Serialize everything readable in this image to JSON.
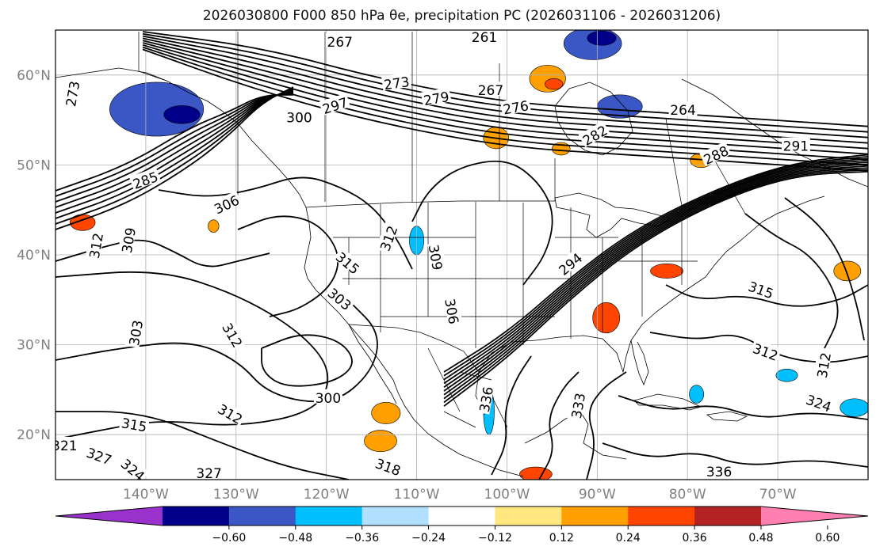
{
  "title": "2026030800 F000 850 hPa θe, precipitation PC (2026031106 - 2026031206)",
  "map": {
    "lon_range": [
      -150,
      -60
    ],
    "lat_range": [
      15,
      65
    ],
    "lon_ticks": [
      "140°W",
      "130°W",
      "120°W",
      "110°W",
      "100°W",
      "90°W",
      "80°W",
      "70°W"
    ],
    "lat_ticks": [
      "60°N",
      "50°N",
      "40°N",
      "30°N",
      "20°N"
    ],
    "grid": true,
    "contour_labels": [
      {
        "text": "267",
        "lon": -118.5,
        "lat": 63.6,
        "rot": 0
      },
      {
        "text": "261",
        "lon": -102.5,
        "lat": 64.1,
        "rot": 0
      },
      {
        "text": "273",
        "lon": -148.0,
        "lat": 57.9,
        "rot": 80
      },
      {
        "text": "273",
        "lon": -112.2,
        "lat": 59.0,
        "rot": 8
      },
      {
        "text": "279",
        "lon": -107.8,
        "lat": 57.3,
        "rot": 10
      },
      {
        "text": "267",
        "lon": -101.8,
        "lat": 58.2,
        "rot": 0
      },
      {
        "text": "276",
        "lon": -99.0,
        "lat": 56.3,
        "rot": 10
      },
      {
        "text": "297",
        "lon": -119.0,
        "lat": 56.5,
        "rot": 18
      },
      {
        "text": "300",
        "lon": -123.0,
        "lat": 55.2,
        "rot": 0
      },
      {
        "text": "264",
        "lon": -80.5,
        "lat": 56.0,
        "rot": 0
      },
      {
        "text": "282",
        "lon": -90.2,
        "lat": 53.2,
        "rot": 30
      },
      {
        "text": "288",
        "lon": -76.8,
        "lat": 51.0,
        "rot": 25
      },
      {
        "text": "291",
        "lon": -68.0,
        "lat": 52.0,
        "rot": 0
      },
      {
        "text": "285",
        "lon": -140.0,
        "lat": 48.2,
        "rot": 20
      },
      {
        "text": "306",
        "lon": -131.0,
        "lat": 45.5,
        "rot": 25
      },
      {
        "text": "309",
        "lon": -141.8,
        "lat": 41.6,
        "rot": 80
      },
      {
        "text": "312",
        "lon": -145.4,
        "lat": 41.0,
        "rot": 80
      },
      {
        "text": "312",
        "lon": -113.0,
        "lat": 41.8,
        "rot": 70
      },
      {
        "text": "315",
        "lon": -117.7,
        "lat": 39.0,
        "rot": -40
      },
      {
        "text": "309",
        "lon": -108.0,
        "lat": 39.7,
        "rot": -80
      },
      {
        "text": "294",
        "lon": -92.9,
        "lat": 38.9,
        "rot": 40
      },
      {
        "text": "303",
        "lon": -118.6,
        "lat": 35.0,
        "rot": -40
      },
      {
        "text": "306",
        "lon": -106.2,
        "lat": 33.7,
        "rot": -80
      },
      {
        "text": "303",
        "lon": -141.0,
        "lat": 31.3,
        "rot": 80
      },
      {
        "text": "312",
        "lon": -130.5,
        "lat": 31.0,
        "rot": -60
      },
      {
        "text": "315",
        "lon": -71.9,
        "lat": 36.0,
        "rot": -20
      },
      {
        "text": "312",
        "lon": -71.4,
        "lat": 29.1,
        "rot": -20
      },
      {
        "text": "312",
        "lon": -64.8,
        "lat": 27.7,
        "rot": 80
      },
      {
        "text": "300",
        "lon": -119.8,
        "lat": 24.0,
        "rot": 0
      },
      {
        "text": "312",
        "lon": -130.7,
        "lat": 22.2,
        "rot": -30
      },
      {
        "text": "336",
        "lon": -102.2,
        "lat": 23.9,
        "rot": 80
      },
      {
        "text": "333",
        "lon": -92.0,
        "lat": 23.2,
        "rot": 80
      },
      {
        "text": "324",
        "lon": -65.5,
        "lat": 23.4,
        "rot": -20
      },
      {
        "text": "315",
        "lon": -141.3,
        "lat": 21.0,
        "rot": -10
      },
      {
        "text": "321",
        "lon": -149.0,
        "lat": 18.7,
        "rot": 0
      },
      {
        "text": "327",
        "lon": -145.2,
        "lat": 17.5,
        "rot": -20
      },
      {
        "text": "324",
        "lon": -141.5,
        "lat": 16.0,
        "rot": -40
      },
      {
        "text": "327",
        "lon": -133.0,
        "lat": 15.6,
        "rot": 0
      },
      {
        "text": "318",
        "lon": -113.2,
        "lat": 16.3,
        "rot": -20
      },
      {
        "text": "336",
        "lon": -76.5,
        "lat": 15.8,
        "rot": 0
      }
    ],
    "precip_blobs": [
      {
        "lon": -138.8,
        "lat": 56.2,
        "rx": 5.2,
        "ry": 3.0,
        "color": "#3b57c6"
      },
      {
        "lon": -136.0,
        "lat": 55.6,
        "rx": 2.0,
        "ry": 1.0,
        "color": "#00008b"
      },
      {
        "lon": -90.5,
        "lat": 63.5,
        "rx": 3.2,
        "ry": 1.8,
        "color": "#3b57c6"
      },
      {
        "lon": -89.5,
        "lat": 64.1,
        "rx": 1.6,
        "ry": 0.8,
        "color": "#00008b"
      },
      {
        "lon": -87.5,
        "lat": 56.5,
        "rx": 2.5,
        "ry": 1.3,
        "color": "#3b57c6"
      },
      {
        "lon": -95.5,
        "lat": 59.6,
        "rx": 2.0,
        "ry": 1.5,
        "color": "#ffa000"
      },
      {
        "lon": -94.8,
        "lat": 59.0,
        "rx": 1.0,
        "ry": 0.6,
        "color": "#ff4500"
      },
      {
        "lon": -101.2,
        "lat": 53.0,
        "rx": 1.4,
        "ry": 1.2,
        "color": "#ffa000"
      },
      {
        "lon": -147.0,
        "lat": 43.6,
        "rx": 1.4,
        "ry": 0.9,
        "color": "#ff4500"
      },
      {
        "lon": -82.3,
        "lat": 38.2,
        "rx": 1.8,
        "ry": 0.8,
        "color": "#ff4500"
      },
      {
        "lon": -89.0,
        "lat": 33.0,
        "rx": 1.5,
        "ry": 1.7,
        "color": "#ff4500"
      },
      {
        "lon": -114.0,
        "lat": 19.3,
        "rx": 1.8,
        "ry": 1.2,
        "color": "#ffa000"
      },
      {
        "lon": -113.4,
        "lat": 22.4,
        "rx": 1.6,
        "ry": 1.2,
        "color": "#ffa000"
      },
      {
        "lon": -96.8,
        "lat": 15.6,
        "rx": 1.8,
        "ry": 0.8,
        "color": "#ff4500"
      },
      {
        "lon": -62.3,
        "lat": 38.2,
        "rx": 1.5,
        "ry": 1.1,
        "color": "#ffa000"
      },
      {
        "lon": -78.5,
        "lat": 50.5,
        "rx": 1.2,
        "ry": 0.8,
        "color": "#ffa000"
      },
      {
        "lon": -102.0,
        "lat": 22.6,
        "rx": 0.6,
        "ry": 2.6,
        "color": "#00bfff"
      },
      {
        "lon": -110.0,
        "lat": 41.6,
        "rx": 0.8,
        "ry": 1.6,
        "color": "#00bfff"
      },
      {
        "lon": -69.0,
        "lat": 26.6,
        "rx": 1.2,
        "ry": 0.7,
        "color": "#00bfff"
      },
      {
        "lon": -61.5,
        "lat": 23.0,
        "rx": 1.6,
        "ry": 1.0,
        "color": "#00bfff"
      },
      {
        "lon": -79.0,
        "lat": 24.5,
        "rx": 0.8,
        "ry": 1.0,
        "color": "#00bfff"
      },
      {
        "lon": -94.0,
        "lat": 51.8,
        "rx": 1.0,
        "ry": 0.7,
        "color": "#ffa000"
      },
      {
        "lon": -132.5,
        "lat": 43.2,
        "rx": 0.6,
        "ry": 0.7,
        "color": "#ffa000"
      }
    ]
  },
  "colorbar": {
    "colors": [
      "#9932cc",
      "#00008b",
      "#3b57c6",
      "#00bfff",
      "#b0e0ff",
      "#ffffff",
      "#ffe680",
      "#ffa000",
      "#ff4500",
      "#b22222",
      "#ff80b0"
    ],
    "tick_labels": [
      "−0.60",
      "−0.48",
      "−0.36",
      "−0.24",
      "−0.12",
      "0.12",
      "0.24",
      "0.36",
      "0.48",
      "0.60"
    ]
  }
}
